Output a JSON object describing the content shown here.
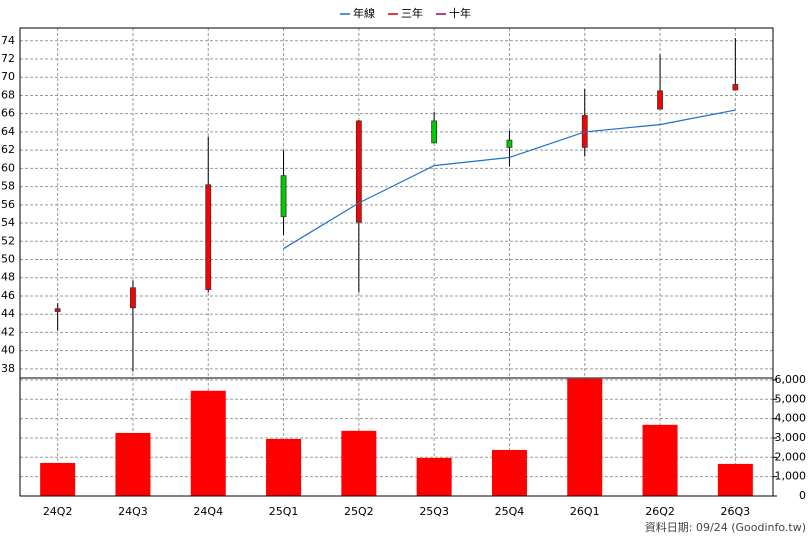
{
  "chart_data": [
    {
      "type": "candlestick",
      "categories": [
        "24Q2",
        "24Q3",
        "24Q4",
        "25Q1",
        "25Q2",
        "25Q3",
        "25Q4",
        "26Q1",
        "26Q2",
        "26Q3"
      ],
      "open": [
        44.3,
        44.7,
        46.7,
        59.2,
        54.1,
        65.2,
        63.1,
        62.3,
        66.5,
        68.6
      ],
      "high": [
        45.2,
        47.7,
        63.5,
        62.0,
        65.3,
        66.2,
        64.1,
        68.7,
        72.5,
        74.3
      ],
      "low": [
        42.2,
        37.7,
        46.4,
        52.7,
        46.4,
        62.8,
        60.2,
        61.3,
        66.5,
        68.6
      ],
      "close": [
        44.6,
        46.9,
        58.2,
        54.7,
        65.2,
        62.8,
        62.3,
        65.8,
        68.5,
        69.2
      ],
      "up_color": "#ff0000",
      "down_color": "#00cc00",
      "series": [
        {
          "name": "年線",
          "color": "#1f6fc6",
          "values": [
            null,
            null,
            null,
            51.2,
            56.2,
            60.3,
            61.2,
            64.0,
            64.8,
            66.4
          ]
        },
        {
          "name": "三年",
          "color": "#cc0000",
          "values": [
            null,
            null,
            null,
            null,
            null,
            null,
            null,
            null,
            null,
            null
          ]
        },
        {
          "name": "十年",
          "color": "#990066",
          "values": [
            null,
            null,
            null,
            null,
            null,
            null,
            null,
            null,
            null,
            null
          ]
        }
      ],
      "ylim": [
        37,
        75.4
      ],
      "yticks": [
        38,
        40,
        42,
        44,
        46,
        48,
        50,
        52,
        54,
        56,
        58,
        60,
        62,
        64,
        66,
        68,
        70,
        72,
        74
      ],
      "grid": true
    },
    {
      "type": "bar",
      "values": [
        1710,
        3260,
        5440,
        2950,
        3370,
        1970,
        2380,
        6060,
        3680,
        1660
      ],
      "color": "#ff0000",
      "ylim": [
        0,
        6100
      ],
      "yticks": [
        0,
        {
          "value": 1000,
          "label": "1,000"
        },
        {
          "value": 2000,
          "label": "2,000"
        },
        {
          "value": 3000,
          "label": "3,000"
        },
        {
          "value": 4000,
          "label": "4,000"
        },
        {
          "value": 5000,
          "label": "5,000"
        },
        {
          "value": 6000,
          "label": "6,000"
        }
      ],
      "grid": true
    }
  ],
  "footer": "資料日期: 09/24 (Goodinfo.tw)"
}
